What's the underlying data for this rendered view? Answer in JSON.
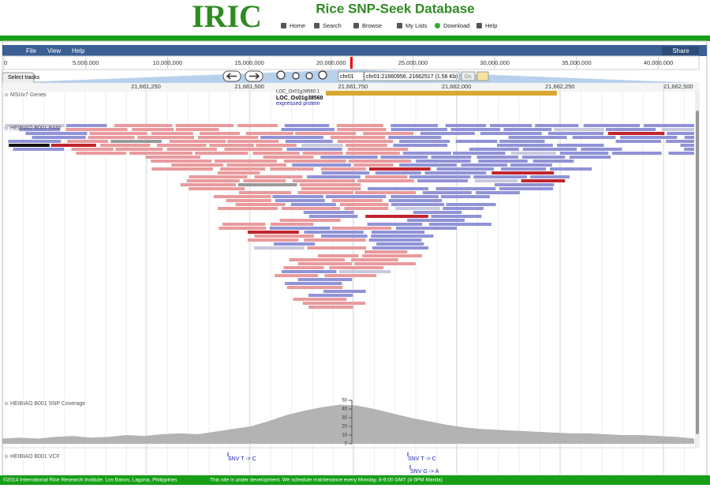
{
  "header": {
    "logo": "IRIC",
    "title": "Rice SNP-Seek Database",
    "nav": [
      "Home",
      "Search",
      "Browse",
      "My Lists",
      "Download",
      "Help"
    ]
  },
  "menu": {
    "items": [
      "File",
      "View",
      "Help"
    ],
    "share": "Share"
  },
  "overview_ticks": [
    "0",
    "5,000,000",
    "10,000,000",
    "15,000,000",
    "20,000,000",
    "25,000,000",
    "30,000,000",
    "35,000,000",
    "40,000,000"
  ],
  "select_tracks": "Select tracks",
  "locator": {
    "chrom": "chr01",
    "location": "chr01:21660956..21662517 (1.56 Kb)",
    "go": "Go"
  },
  "detail_ticks": [
    "21,661,250",
    "21,661,500",
    "21,661,750",
    "21,662,000",
    "21,662,250",
    "21,662,500"
  ],
  "tracks": {
    "genes": {
      "label": "MSUv7 Genes",
      "transcript": "LOC_Os01g38560.1",
      "name": "LOC_Os01g38560",
      "description": "expressed protein"
    },
    "bam": {
      "label": "HEIBIAO B001 BAM"
    },
    "coverage": {
      "label": "HEIBIAO B001 SNP Coverage",
      "ylim": [
        0,
        50
      ],
      "yticks": [
        0,
        10,
        20,
        30,
        40,
        50
      ],
      "values": [
        6,
        7,
        6,
        8,
        9,
        7,
        8,
        10,
        9,
        11,
        12,
        11,
        14,
        17,
        20,
        26,
        33,
        38,
        42,
        45,
        44,
        40,
        35,
        30,
        26,
        22,
        19,
        17,
        16,
        15,
        14,
        13,
        12,
        12,
        11,
        10,
        10,
        9,
        8,
        6
      ]
    },
    "vcf": {
      "label": "HEIBIAO B001 VCF",
      "variants": [
        "SNV T -> C",
        "SNV T -> C",
        "SNV G -> A"
      ]
    }
  },
  "footer": {
    "copyright": "©2014 International Rice Research Institute. Los Banos, Laguna, Philippines",
    "notice": "This site is under development. We schedule maintenance every Monday, 8-9:00 GMT (4-5PM Manila)"
  }
}
